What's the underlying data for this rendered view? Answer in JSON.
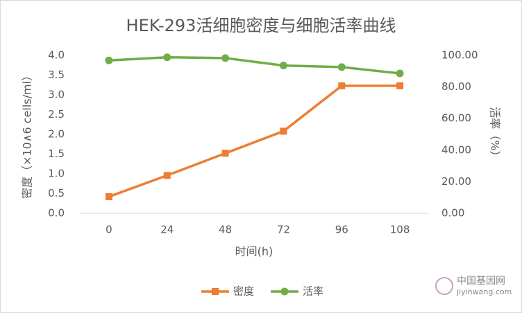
{
  "chart_data": {
    "type": "line",
    "title": "HEK-293活细胞密度与细胞活率曲线",
    "x_label": "时间(h)",
    "y_label": "密度（×10∧6 cells/ml）",
    "y2_label": "活率（%）",
    "categories": [
      "0",
      "24",
      "48",
      "72",
      "96",
      "108"
    ],
    "series": [
      {
        "name": "密度",
        "color": "#ED7D31",
        "marker": "square",
        "values": [
          0.42,
          0.96,
          1.52,
          2.08,
          3.23,
          3.23
        ]
      },
      {
        "name": "活率",
        "color": "#70AD47",
        "marker": "circle",
        "axis": "y2",
        "values": [
          96.8,
          98.8,
          98.3,
          93.6,
          92.6,
          88.6
        ]
      }
    ],
    "ylim": [
      0,
      4
    ],
    "yticks": [
      {
        "value": 0,
        "label": "0.0"
      },
      {
        "value": 0.5,
        "label": "0.5"
      },
      {
        "value": 1,
        "label": "1.0"
      },
      {
        "value": 1.5,
        "label": "1.5"
      },
      {
        "value": 2,
        "label": "2.0"
      },
      {
        "value": 2.5,
        "label": "2.5"
      },
      {
        "value": 3,
        "label": "3.0"
      },
      {
        "value": 3.5,
        "label": "3.5"
      },
      {
        "value": 4,
        "label": "4.0"
      }
    ],
    "y2lim": [
      0,
      100
    ],
    "y2ticks": [
      {
        "value": 0,
        "label": "0.00"
      },
      {
        "value": 20,
        "label": "20.00"
      },
      {
        "value": 40,
        "label": "40.00"
      },
      {
        "value": 60,
        "label": "60.00"
      },
      {
        "value": 80,
        "label": "80.00"
      },
      {
        "value": 100,
        "label": "100.00"
      }
    ],
    "grid": false,
    "legend": "bottom",
    "watermark": {
      "name": "中国基因网",
      "url": "jiyinwang.com"
    }
  }
}
